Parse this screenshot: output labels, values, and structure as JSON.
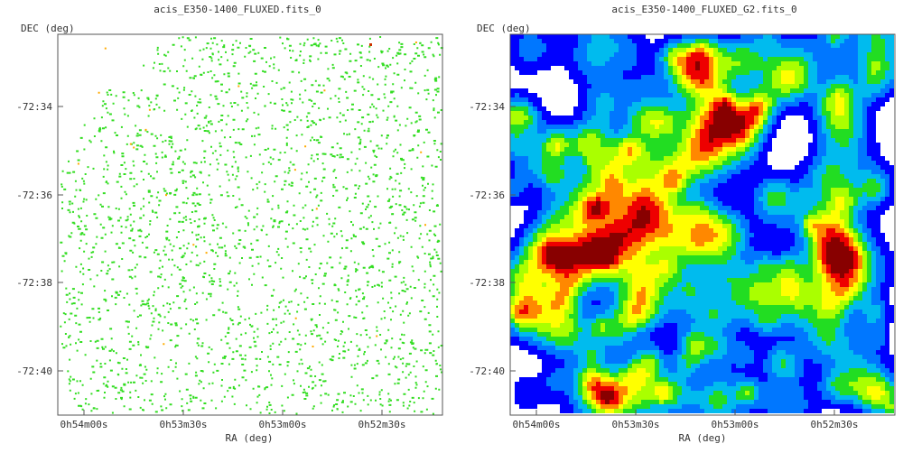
{
  "panels": [
    {
      "title": "acis_E350-1400_FLUXED.fits_0",
      "render": "sparse",
      "axes": {
        "xlabel": "RA (deg)",
        "ylabel": "DEC (deg)",
        "xticks": [
          "0h54m00s",
          "0h53m30s",
          "0h53m00s",
          "0h52m30s"
        ],
        "yticks": [
          "-72:34",
          "-72:36",
          "-72:38",
          "-72:40"
        ]
      }
    },
    {
      "title": "acis_E350-1400_FLUXED_G2.fits_0",
      "render": "smoothed",
      "axes": {
        "xlabel": "RA (deg)",
        "ylabel": "DEC (deg)",
        "xticks": [
          "0h54m00s",
          "0h53m30s",
          "0h53m00s",
          "0h52m30s"
        ],
        "yticks": [
          "-72:34",
          "-72:36",
          "-72:38",
          "-72:40"
        ]
      }
    }
  ],
  "colors": {
    "sparse_event": "#33dd22",
    "sparse_bright": "#ffaa00",
    "sparse_peak": "#cc3300",
    "smooth_scale": [
      "#0000ff",
      "#0077ff",
      "#00bbee",
      "#22dd22",
      "#aaff00",
      "#ffff00",
      "#ff8800",
      "#ee0000",
      "#880000"
    ]
  }
}
